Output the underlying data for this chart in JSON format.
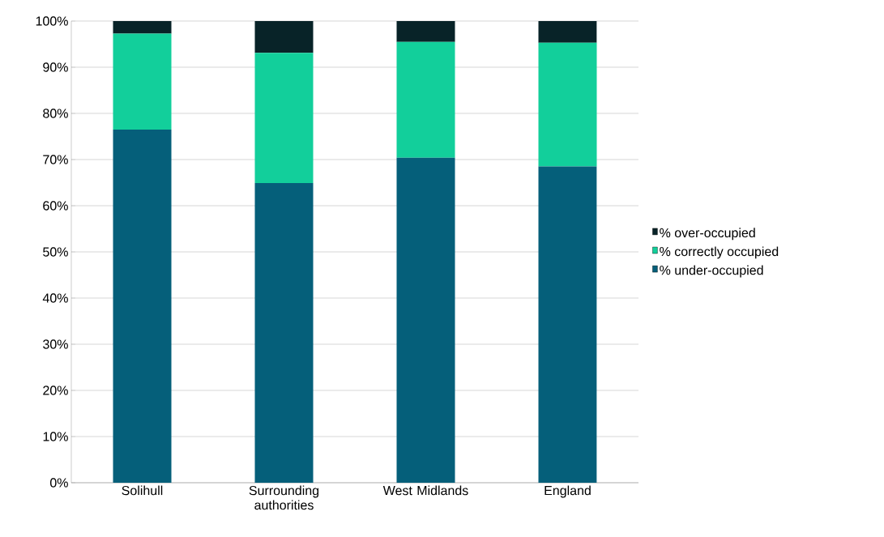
{
  "chart_data": {
    "type": "bar",
    "stacked": true,
    "categories": [
      "Solihull",
      "Surrounding authorities",
      "West Midlands",
      "England"
    ],
    "series": [
      {
        "name": "% under-occupied",
        "color": "#055f7a",
        "values": [
          76.5,
          64.9,
          70.4,
          68.5
        ]
      },
      {
        "name": "% correctly occupied",
        "color": "#12cf9b",
        "values": [
          20.8,
          28.2,
          25.1,
          26.8
        ]
      },
      {
        "name": "% over-occupied",
        "color": "#082328",
        "values": [
          2.7,
          6.9,
          4.5,
          4.7
        ]
      }
    ],
    "ylim": [
      0,
      100
    ],
    "yticks": [
      {
        "value": 0,
        "label": "0%"
      },
      {
        "value": 10,
        "label": "10%"
      },
      {
        "value": 20,
        "label": "20%"
      },
      {
        "value": 30,
        "label": "30%"
      },
      {
        "value": 40,
        "label": "40%"
      },
      {
        "value": 50,
        "label": "50%"
      },
      {
        "value": 60,
        "label": "60%"
      },
      {
        "value": 70,
        "label": "70%"
      },
      {
        "value": 80,
        "label": "80%"
      },
      {
        "value": 90,
        "label": "90%"
      },
      {
        "value": 100,
        "label": "100%"
      }
    ],
    "grid": "y",
    "legend": "right"
  }
}
